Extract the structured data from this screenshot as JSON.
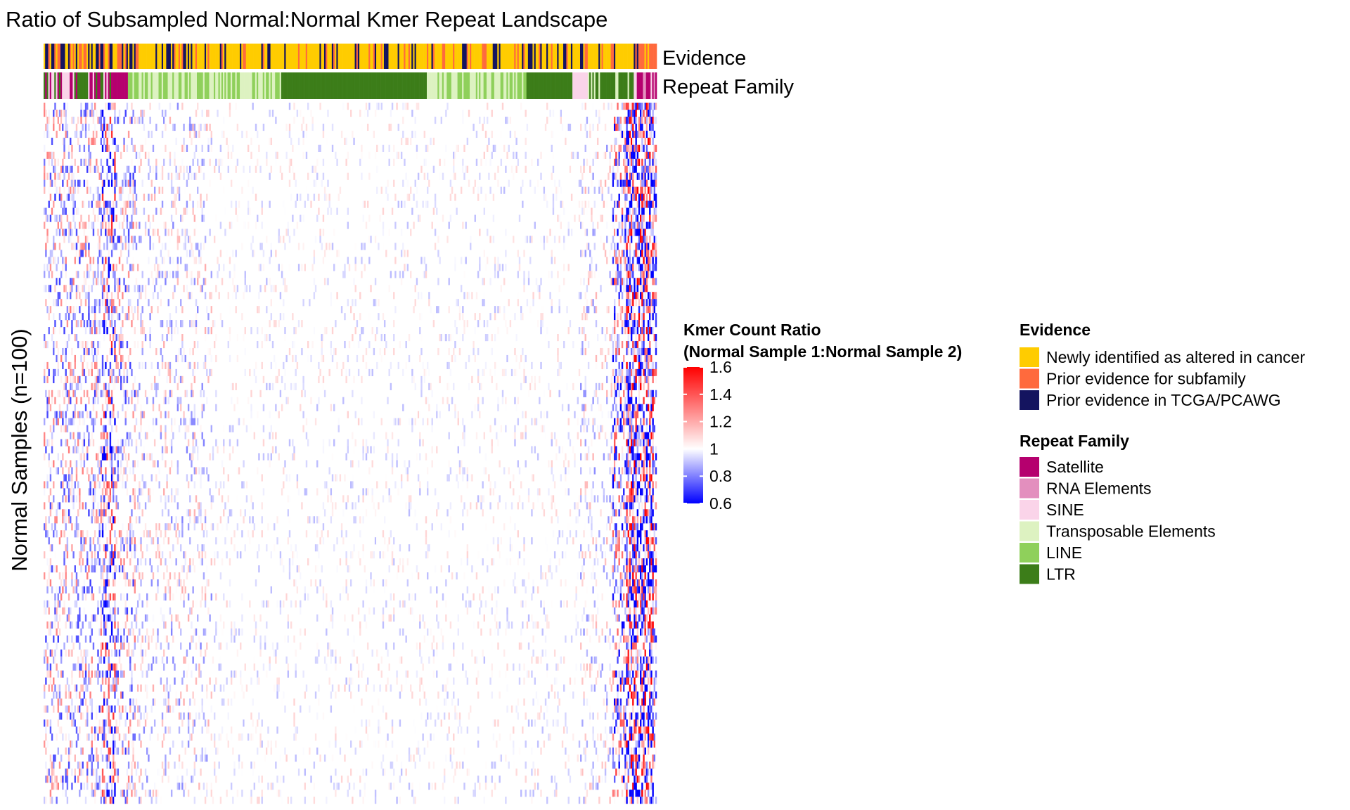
{
  "chart_data": {
    "type": "heatmap",
    "title": "Ratio of Subsampled Normal:Normal Kmer Repeat Landscape",
    "ylabel": "Normal Samples (n=100)",
    "n_rows": 100,
    "annotation_tracks": [
      {
        "name": "Evidence",
        "legend_title": "Evidence",
        "levels": [
          {
            "label": "Newly identified as altered in cancer",
            "color": "#FFCC00"
          },
          {
            "label": "Prior evidence for subfamily",
            "color": "#FF6A3D"
          },
          {
            "label": "Prior evidence in TCGA/PCAWG",
            "color": "#14145F"
          }
        ]
      },
      {
        "name": "Repeat Family",
        "legend_title": "Repeat Family",
        "levels": [
          {
            "label": "Satellite",
            "color": "#B5006E"
          },
          {
            "label": "RNA Elements",
            "color": "#E38FBE"
          },
          {
            "label": "SINE",
            "color": "#FAD4E9"
          },
          {
            "label": "Transposable Elements",
            "color": "#DDF2C1"
          },
          {
            "label": "LINE",
            "color": "#8FD05B"
          },
          {
            "label": "LTR",
            "color": "#3C7D19"
          }
        ]
      }
    ],
    "color_scale": {
      "title_line1": "Kmer Count Ratio",
      "title_line2": "(Normal Sample 1:Normal Sample 2)",
      "ticks": [
        "1.6",
        "1.4",
        "1.2",
        "1",
        "0.8",
        "0.6"
      ],
      "min": 0.6,
      "mid": 1.0,
      "max": 1.6,
      "low_color": "#0000FF",
      "mid_color": "#FFFFFF",
      "high_color": "#FF0000"
    }
  }
}
